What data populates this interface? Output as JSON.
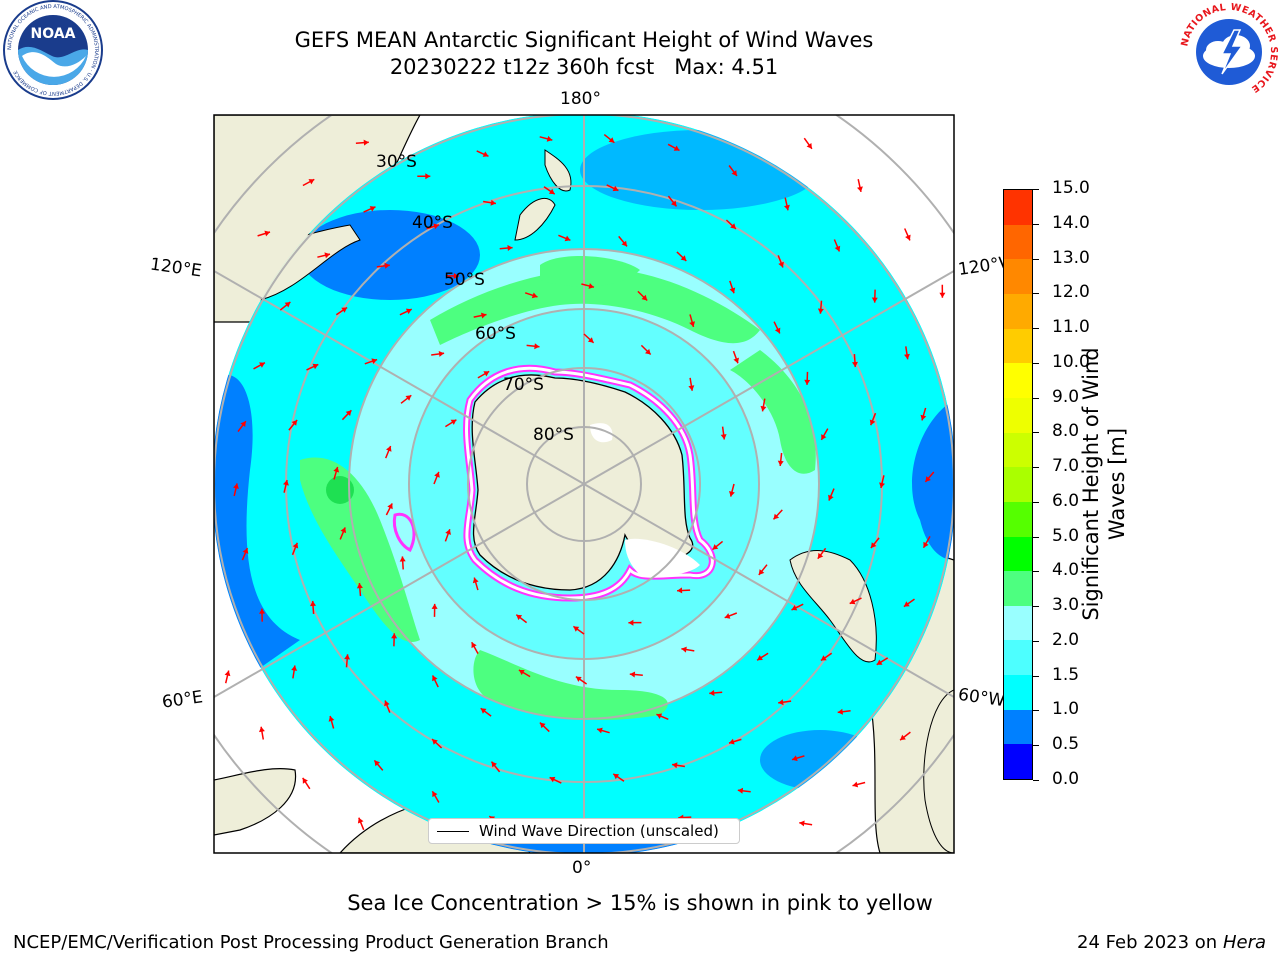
{
  "header": {
    "title_line1": "GEFS MEAN Antarctic Significant Height of Wind Waves",
    "title_line2": "20230222 t12z 360h fcst",
    "max_label": "Max: 4.51"
  },
  "logos": {
    "noaa": {
      "text": "NOAA",
      "ring_text": "NATIONAL OCEANIC AND ATMOSPHERIC ADMINISTRATION · U.S. DEPARTMENT OF COMMERCE",
      "icon": "noaa-logo"
    },
    "nws": {
      "ring_text": "NATIONAL WEATHER SERVICE",
      "icon": "nws-logo"
    }
  },
  "map": {
    "longitude_labels": {
      "top": "180°",
      "bottom": "0°",
      "left_upper": "120°E",
      "left_lower": "60°E",
      "right_upper": "120°W",
      "right_lower": "60°W"
    },
    "latitude_labels": [
      "30°S",
      "40°S",
      "50°S",
      "60°S",
      "70°S",
      "80°S"
    ],
    "legend_text": "Wind Wave Direction (unscaled)",
    "colors": {
      "ocean_light": "#00ffff",
      "ocean_dark": "#0080ff",
      "wave_mid": "#99ffff",
      "wave_high": "#4dff80",
      "land": "#eeeed9",
      "arrow": "#ff0000",
      "ice_pink": "#ff33ff"
    }
  },
  "colorbar": {
    "label_line1": "Significant Height of Wind",
    "label_line2": "Waves [m]",
    "ticks": [
      "0.0",
      "0.5",
      "1.0",
      "1.5",
      "2.0",
      "3.0",
      "4.0",
      "5.0",
      "6.0",
      "7.0",
      "8.0",
      "9.0",
      "10.0",
      "11.0",
      "12.0",
      "13.0",
      "14.0",
      "15.0"
    ],
    "colors": [
      "#0000ff",
      "#0080ff",
      "#00ffff",
      "#4dffff",
      "#99ffff",
      "#4dff80",
      "#00ff00",
      "#55ff00",
      "#aaff00",
      "#ccff00",
      "#eeff00",
      "#ffff00",
      "#ffcc00",
      "#ffaa00",
      "#ff8800",
      "#ff6600",
      "#ff3300",
      "#ff0000"
    ]
  },
  "note": "Sea Ice Concentration > 15% is shown in pink to yellow",
  "footer": {
    "left": "NCEP/EMC/Verification Post Processing Product Generation Branch",
    "right_date": "24 Feb 2023 on",
    "right_host": "Hera"
  }
}
